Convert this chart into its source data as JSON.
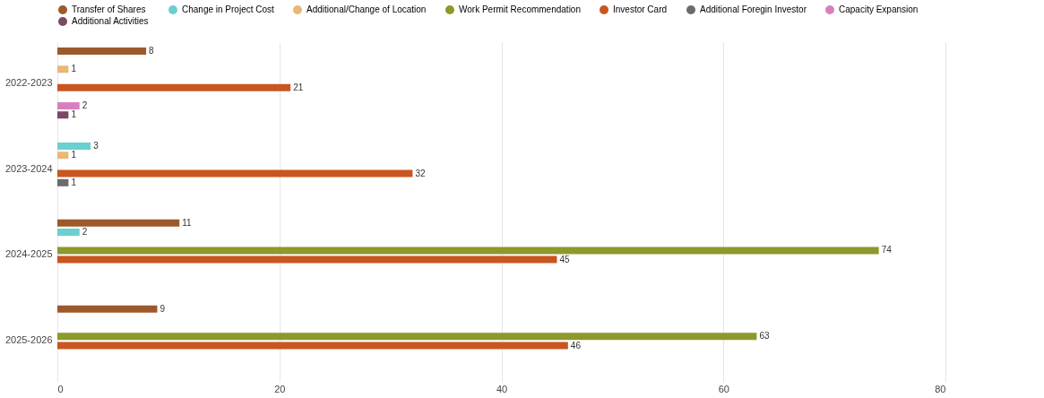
{
  "chart_data": {
    "type": "bar",
    "orientation": "horizontal",
    "categories": [
      "2022-2023",
      "2023-2024",
      "2024-2025",
      "2025-2026"
    ],
    "series": [
      {
        "name": "Transfer of Shares",
        "color": "#9c5a2c",
        "values": [
          8,
          null,
          11,
          9
        ]
      },
      {
        "name": "Change in Project Cost",
        "color": "#6ccfd0",
        "values": [
          null,
          3,
          2,
          null
        ]
      },
      {
        "name": "Additional/Change of Location",
        "color": "#e9b877",
        "values": [
          1,
          1,
          null,
          null
        ]
      },
      {
        "name": "Work Permit Recommendation",
        "color": "#8e982b",
        "values": [
          null,
          null,
          74,
          63
        ]
      },
      {
        "name": "Investor Card",
        "color": "#c9561f",
        "values": [
          21,
          32,
          45,
          46
        ]
      },
      {
        "name": "Additional Foregin Investor",
        "color": "#6b6b6b",
        "values": [
          null,
          1,
          null,
          null
        ]
      },
      {
        "name": "Capacity Expansion",
        "color": "#d97fc1",
        "values": [
          2,
          null,
          null,
          null
        ]
      },
      {
        "name": "Additional Activities",
        "color": "#7a4964",
        "values": [
          1,
          null,
          null,
          null
        ]
      }
    ],
    "xlim": [
      0,
      80
    ],
    "xticks": [
      0,
      20,
      40,
      60,
      80
    ],
    "grid": "x",
    "legend": "top",
    "data_labels": true
  }
}
